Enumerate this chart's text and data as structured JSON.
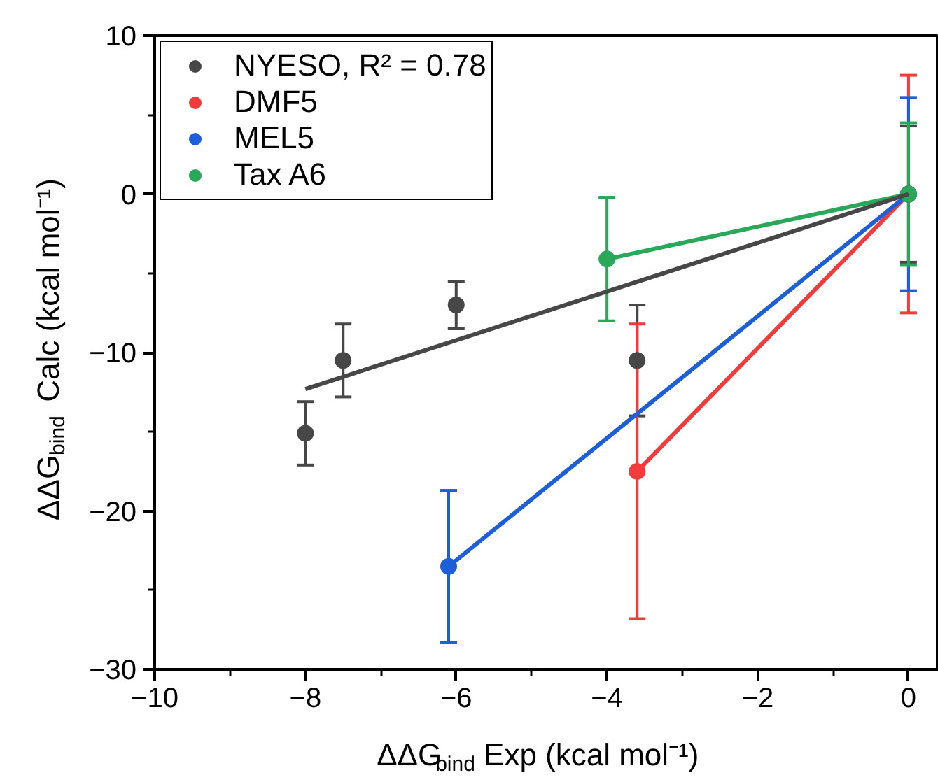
{
  "chart_data": {
    "type": "line",
    "xlabel": "ΔΔG$_{bind}$ Exp (kcal mol⁻¹)",
    "ylabel": "ΔΔG$_{bind}$ Calc (kcal mol⁻¹)",
    "xlim": [
      -10,
      0.4
    ],
    "ylim": [
      -30,
      10
    ],
    "xticks": [
      -10,
      -8,
      -6,
      -4,
      -2,
      0
    ],
    "yticks": [
      -30,
      -20,
      -10,
      0,
      10
    ],
    "grid": false,
    "legend": "top left",
    "marker": "circle",
    "line_style": "solid",
    "series": [
      {
        "name": "NYESO, R² = 0.78",
        "type": "scatter",
        "color": "#474747",
        "x": [
          -8,
          -7.5,
          -6,
          -3.6,
          0
        ],
        "values": [
          -15.1,
          -10.5,
          -7.0,
          -10.5,
          0
        ],
        "errors": [
          2,
          2.3,
          1.5,
          3.5,
          4.3
        ]
      },
      {
        "name": "DMF5",
        "color": "#f23b3b",
        "x": [
          -3.6,
          0
        ],
        "values": [
          -17.5,
          0
        ],
        "errors": [
          9.3,
          7.5
        ]
      },
      {
        "name": "MEL5",
        "color": "#1c5fd9",
        "x": [
          -6.1,
          0
        ],
        "values": [
          -23.5,
          0
        ],
        "errors": [
          4.8,
          6.1
        ]
      },
      {
        "name": "Tax A6",
        "color": "#2aa85a",
        "x": [
          -4,
          0
        ],
        "values": [
          -4.1,
          0
        ],
        "errors": [
          3.9,
          4.5
        ]
      },
      {
        "type": "line",
        "marker": "none",
        "color": "#474747",
        "x": [
          -8,
          0
        ],
        "values": [
          -12.3,
          0
        ]
      }
    ]
  }
}
